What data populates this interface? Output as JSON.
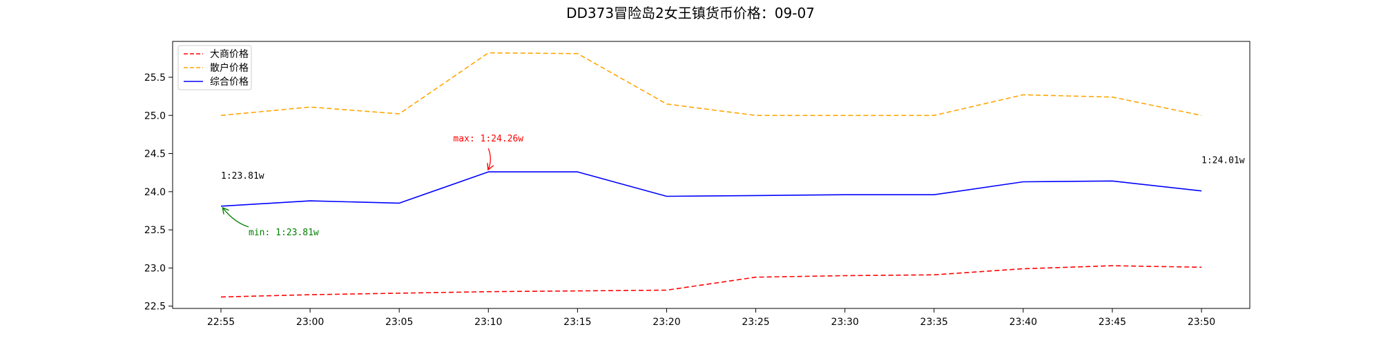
{
  "chart_data": {
    "type": "line",
    "title": "DD373冒险岛2女王镇货币价格：09-07",
    "xlabel": "",
    "ylabel": "",
    "categories": [
      "22:55",
      "23:00",
      "23:05",
      "23:10",
      "23:15",
      "23:20",
      "23:25",
      "23:30",
      "23:35",
      "23:40",
      "23:45",
      "23:50"
    ],
    "ylim": [
      22.47,
      25.97
    ],
    "yticks": [
      "22.5",
      "23.0",
      "23.5",
      "24.0",
      "24.5",
      "25.0",
      "25.5"
    ],
    "ytick_values": [
      22.5,
      23.0,
      23.5,
      24.0,
      24.5,
      25.0,
      25.5
    ],
    "grid": false,
    "legend_position": "top-left",
    "series": [
      {
        "name": "大商价格",
        "color": "#ff0000",
        "dashed": true,
        "values": [
          22.62,
          22.65,
          22.67,
          22.69,
          22.7,
          22.71,
          22.88,
          22.9,
          22.91,
          22.99,
          23.03,
          23.01
        ]
      },
      {
        "name": "散户价格",
        "color": "#ffa500",
        "dashed": true,
        "values": [
          25.0,
          25.11,
          25.02,
          25.82,
          25.81,
          25.15,
          25.0,
          25.0,
          25.0,
          25.27,
          25.24,
          25.0
        ]
      },
      {
        "name": "综合价格",
        "color": "#0000ff",
        "dashed": false,
        "values": [
          23.81,
          23.88,
          23.85,
          24.26,
          24.26,
          23.94,
          23.95,
          23.96,
          23.96,
          24.13,
          24.14,
          24.01
        ]
      }
    ],
    "annotations": {
      "max_label": "max: 1:24.26w",
      "min_label": "min: 1:23.81w",
      "first_label": "1:23.81w",
      "last_label": "1:24.01w",
      "max_color": "#ff0000",
      "min_color": "#008000"
    }
  }
}
